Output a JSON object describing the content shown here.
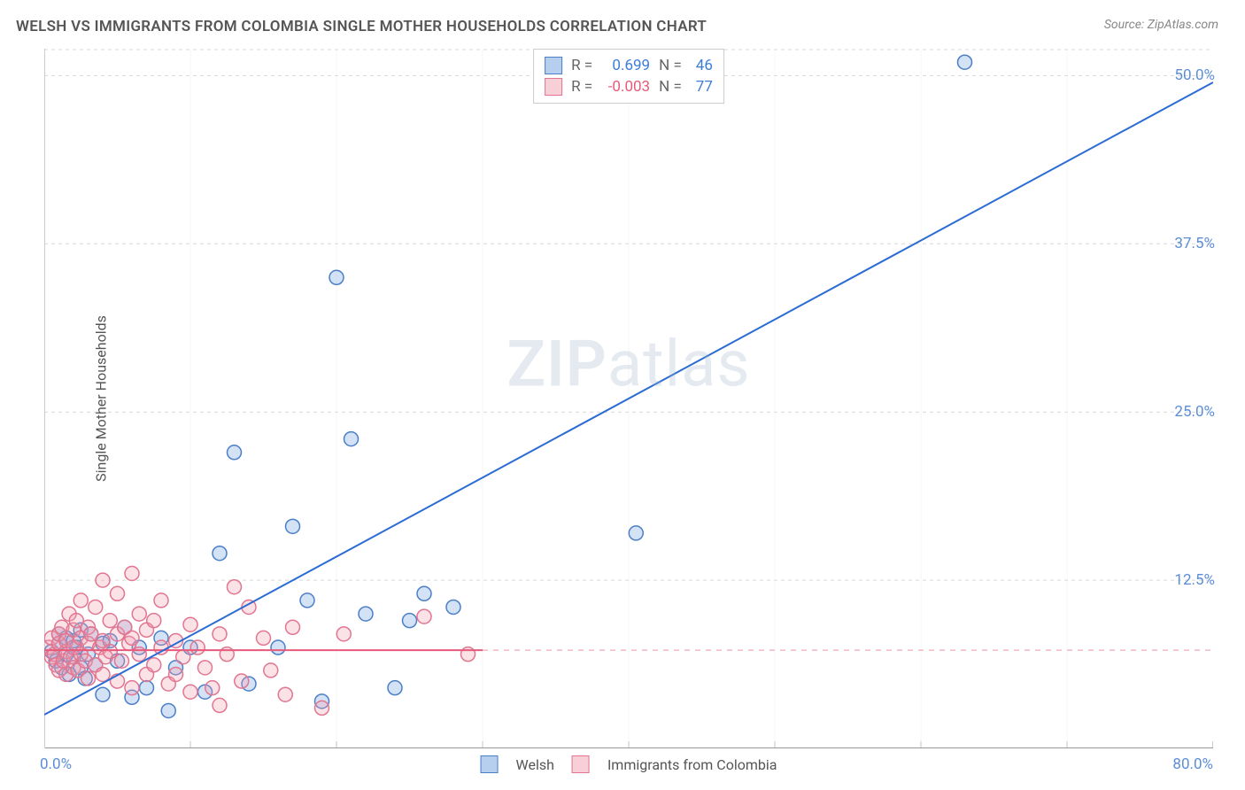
{
  "title": "WELSH VS IMMIGRANTS FROM COLOMBIA SINGLE MOTHER HOUSEHOLDS CORRELATION CHART",
  "source": "Source: ZipAtlas.com",
  "ylabel": "Single Mother Households",
  "watermark_a": "ZIP",
  "watermark_b": "atlas",
  "chart": {
    "type": "scatter",
    "background_color": "#ffffff",
    "grid_color": "#d8d8d8",
    "grid_dash": "4,4",
    "axis_color": "#cccccc",
    "xlim": [
      0,
      80
    ],
    "ylim": [
      0,
      52
    ],
    "xtick_major": [
      0,
      10,
      20,
      30,
      40,
      50,
      60,
      70,
      80
    ],
    "ytick_values": [
      12.5,
      25.0,
      37.5,
      50.0
    ],
    "ytick_labels": [
      "12.5%",
      "25.0%",
      "37.5%",
      "50.0%"
    ],
    "xtick_left_label": "0.0%",
    "xtick_right_label": "80.0%",
    "tick_color": "#5b8dd6",
    "tick_fontsize": 17,
    "label_fontsize": 16,
    "marker_radius": 8,
    "marker_stroke_width": 1.5,
    "marker_fill_opacity": 0.3,
    "trend_line_width": 2
  },
  "series": [
    {
      "name": "Welsh",
      "color": "#6fa0e0",
      "stroke": "#4a7fc8",
      "r_value": "0.699",
      "n_value": "46",
      "trend": {
        "x1": 0,
        "y1": 2.5,
        "x2": 80,
        "y2": 49.5,
        "color": "#2b6cd4"
      },
      "points": [
        [
          0.5,
          7.2
        ],
        [
          0.8,
          6.5
        ],
        [
          1.0,
          7.8
        ],
        [
          1.0,
          8.5
        ],
        [
          1.2,
          6.0
        ],
        [
          1.5,
          7.0
        ],
        [
          1.5,
          8.2
        ],
        [
          1.7,
          5.5
        ],
        [
          2.0,
          6.8
        ],
        [
          2.0,
          8.0
        ],
        [
          2.2,
          7.5
        ],
        [
          2.5,
          6.0
        ],
        [
          2.5,
          8.8
        ],
        [
          2.8,
          5.2
        ],
        [
          3.0,
          7.0
        ],
        [
          3.2,
          8.5
        ],
        [
          3.5,
          6.2
        ],
        [
          4.0,
          7.8
        ],
        [
          4.0,
          4.0
        ],
        [
          4.5,
          8.0
        ],
        [
          5.0,
          6.5
        ],
        [
          5.5,
          9.0
        ],
        [
          6.0,
          3.8
        ],
        [
          6.5,
          7.5
        ],
        [
          7.0,
          4.5
        ],
        [
          8.0,
          8.2
        ],
        [
          8.5,
          2.8
        ],
        [
          9.0,
          6.0
        ],
        [
          10.0,
          7.5
        ],
        [
          11.0,
          4.2
        ],
        [
          12.0,
          14.5
        ],
        [
          13.0,
          22.0
        ],
        [
          14.0,
          4.8
        ],
        [
          16.0,
          7.5
        ],
        [
          17.0,
          16.5
        ],
        [
          18.0,
          11.0
        ],
        [
          19.0,
          3.5
        ],
        [
          20.0,
          35.0
        ],
        [
          21.0,
          23.0
        ],
        [
          22.0,
          10.0
        ],
        [
          24.0,
          4.5
        ],
        [
          25.0,
          9.5
        ],
        [
          26.0,
          11.5
        ],
        [
          28.0,
          10.5
        ],
        [
          40.5,
          16.0
        ],
        [
          63.0,
          51.0
        ]
      ]
    },
    {
      "name": "Immigrants from Colombia",
      "color": "#f2a0b0",
      "stroke": "#e27590",
      "r_value": "-0.003",
      "n_value": "77",
      "trend": {
        "x1": 0,
        "y1": 7.3,
        "x2": 30,
        "y2": 7.3,
        "color": "#e85a7a",
        "dash_after_x": 30,
        "dash_color": "#f2b8c3"
      },
      "points": [
        [
          0.3,
          7.5
        ],
        [
          0.5,
          6.8
        ],
        [
          0.5,
          8.2
        ],
        [
          0.7,
          7.0
        ],
        [
          0.8,
          6.2
        ],
        [
          1.0,
          7.8
        ],
        [
          1.0,
          8.5
        ],
        [
          1.0,
          5.8
        ],
        [
          1.2,
          9.0
        ],
        [
          1.3,
          6.5
        ],
        [
          1.5,
          7.2
        ],
        [
          1.5,
          8.0
        ],
        [
          1.5,
          5.5
        ],
        [
          1.7,
          10.0
        ],
        [
          1.8,
          6.8
        ],
        [
          2.0,
          7.5
        ],
        [
          2.0,
          8.8
        ],
        [
          2.0,
          6.0
        ],
        [
          2.2,
          9.5
        ],
        [
          2.3,
          5.8
        ],
        [
          2.5,
          7.0
        ],
        [
          2.5,
          8.2
        ],
        [
          2.5,
          11.0
        ],
        [
          2.8,
          6.5
        ],
        [
          3.0,
          7.8
        ],
        [
          3.0,
          9.0
        ],
        [
          3.0,
          5.2
        ],
        [
          3.2,
          8.5
        ],
        [
          3.5,
          6.2
        ],
        [
          3.5,
          10.5
        ],
        [
          3.8,
          7.5
        ],
        [
          4.0,
          8.0
        ],
        [
          4.0,
          5.5
        ],
        [
          4.0,
          12.5
        ],
        [
          4.2,
          6.8
        ],
        [
          4.5,
          9.5
        ],
        [
          4.5,
          7.2
        ],
        [
          5.0,
          8.5
        ],
        [
          5.0,
          5.0
        ],
        [
          5.0,
          11.5
        ],
        [
          5.3,
          6.5
        ],
        [
          5.5,
          9.0
        ],
        [
          5.8,
          7.8
        ],
        [
          6.0,
          8.2
        ],
        [
          6.0,
          4.5
        ],
        [
          6.0,
          13.0
        ],
        [
          6.5,
          7.0
        ],
        [
          6.5,
          10.0
        ],
        [
          7.0,
          8.8
        ],
        [
          7.0,
          5.5
        ],
        [
          7.5,
          6.2
        ],
        [
          7.5,
          9.5
        ],
        [
          8.0,
          7.5
        ],
        [
          8.0,
          11.0
        ],
        [
          8.5,
          4.8
        ],
        [
          9.0,
          8.0
        ],
        [
          9.0,
          5.5
        ],
        [
          9.5,
          6.8
        ],
        [
          10.0,
          9.2
        ],
        [
          10.0,
          4.2
        ],
        [
          10.5,
          7.5
        ],
        [
          11.0,
          6.0
        ],
        [
          11.5,
          4.5
        ],
        [
          12.0,
          8.5
        ],
        [
          12.0,
          3.2
        ],
        [
          12.5,
          7.0
        ],
        [
          13.0,
          12.0
        ],
        [
          13.5,
          5.0
        ],
        [
          14.0,
          10.5
        ],
        [
          15.0,
          8.2
        ],
        [
          15.5,
          5.8
        ],
        [
          16.5,
          4.0
        ],
        [
          17.0,
          9.0
        ],
        [
          19.0,
          3.0
        ],
        [
          20.5,
          8.5
        ],
        [
          26.0,
          9.8
        ],
        [
          29.0,
          7.0
        ]
      ]
    }
  ],
  "stats_labels": {
    "r": "R  =",
    "n": "N  ="
  },
  "bottom_legend": {
    "label1": "Welsh",
    "label2": "Immigrants from Colombia"
  }
}
